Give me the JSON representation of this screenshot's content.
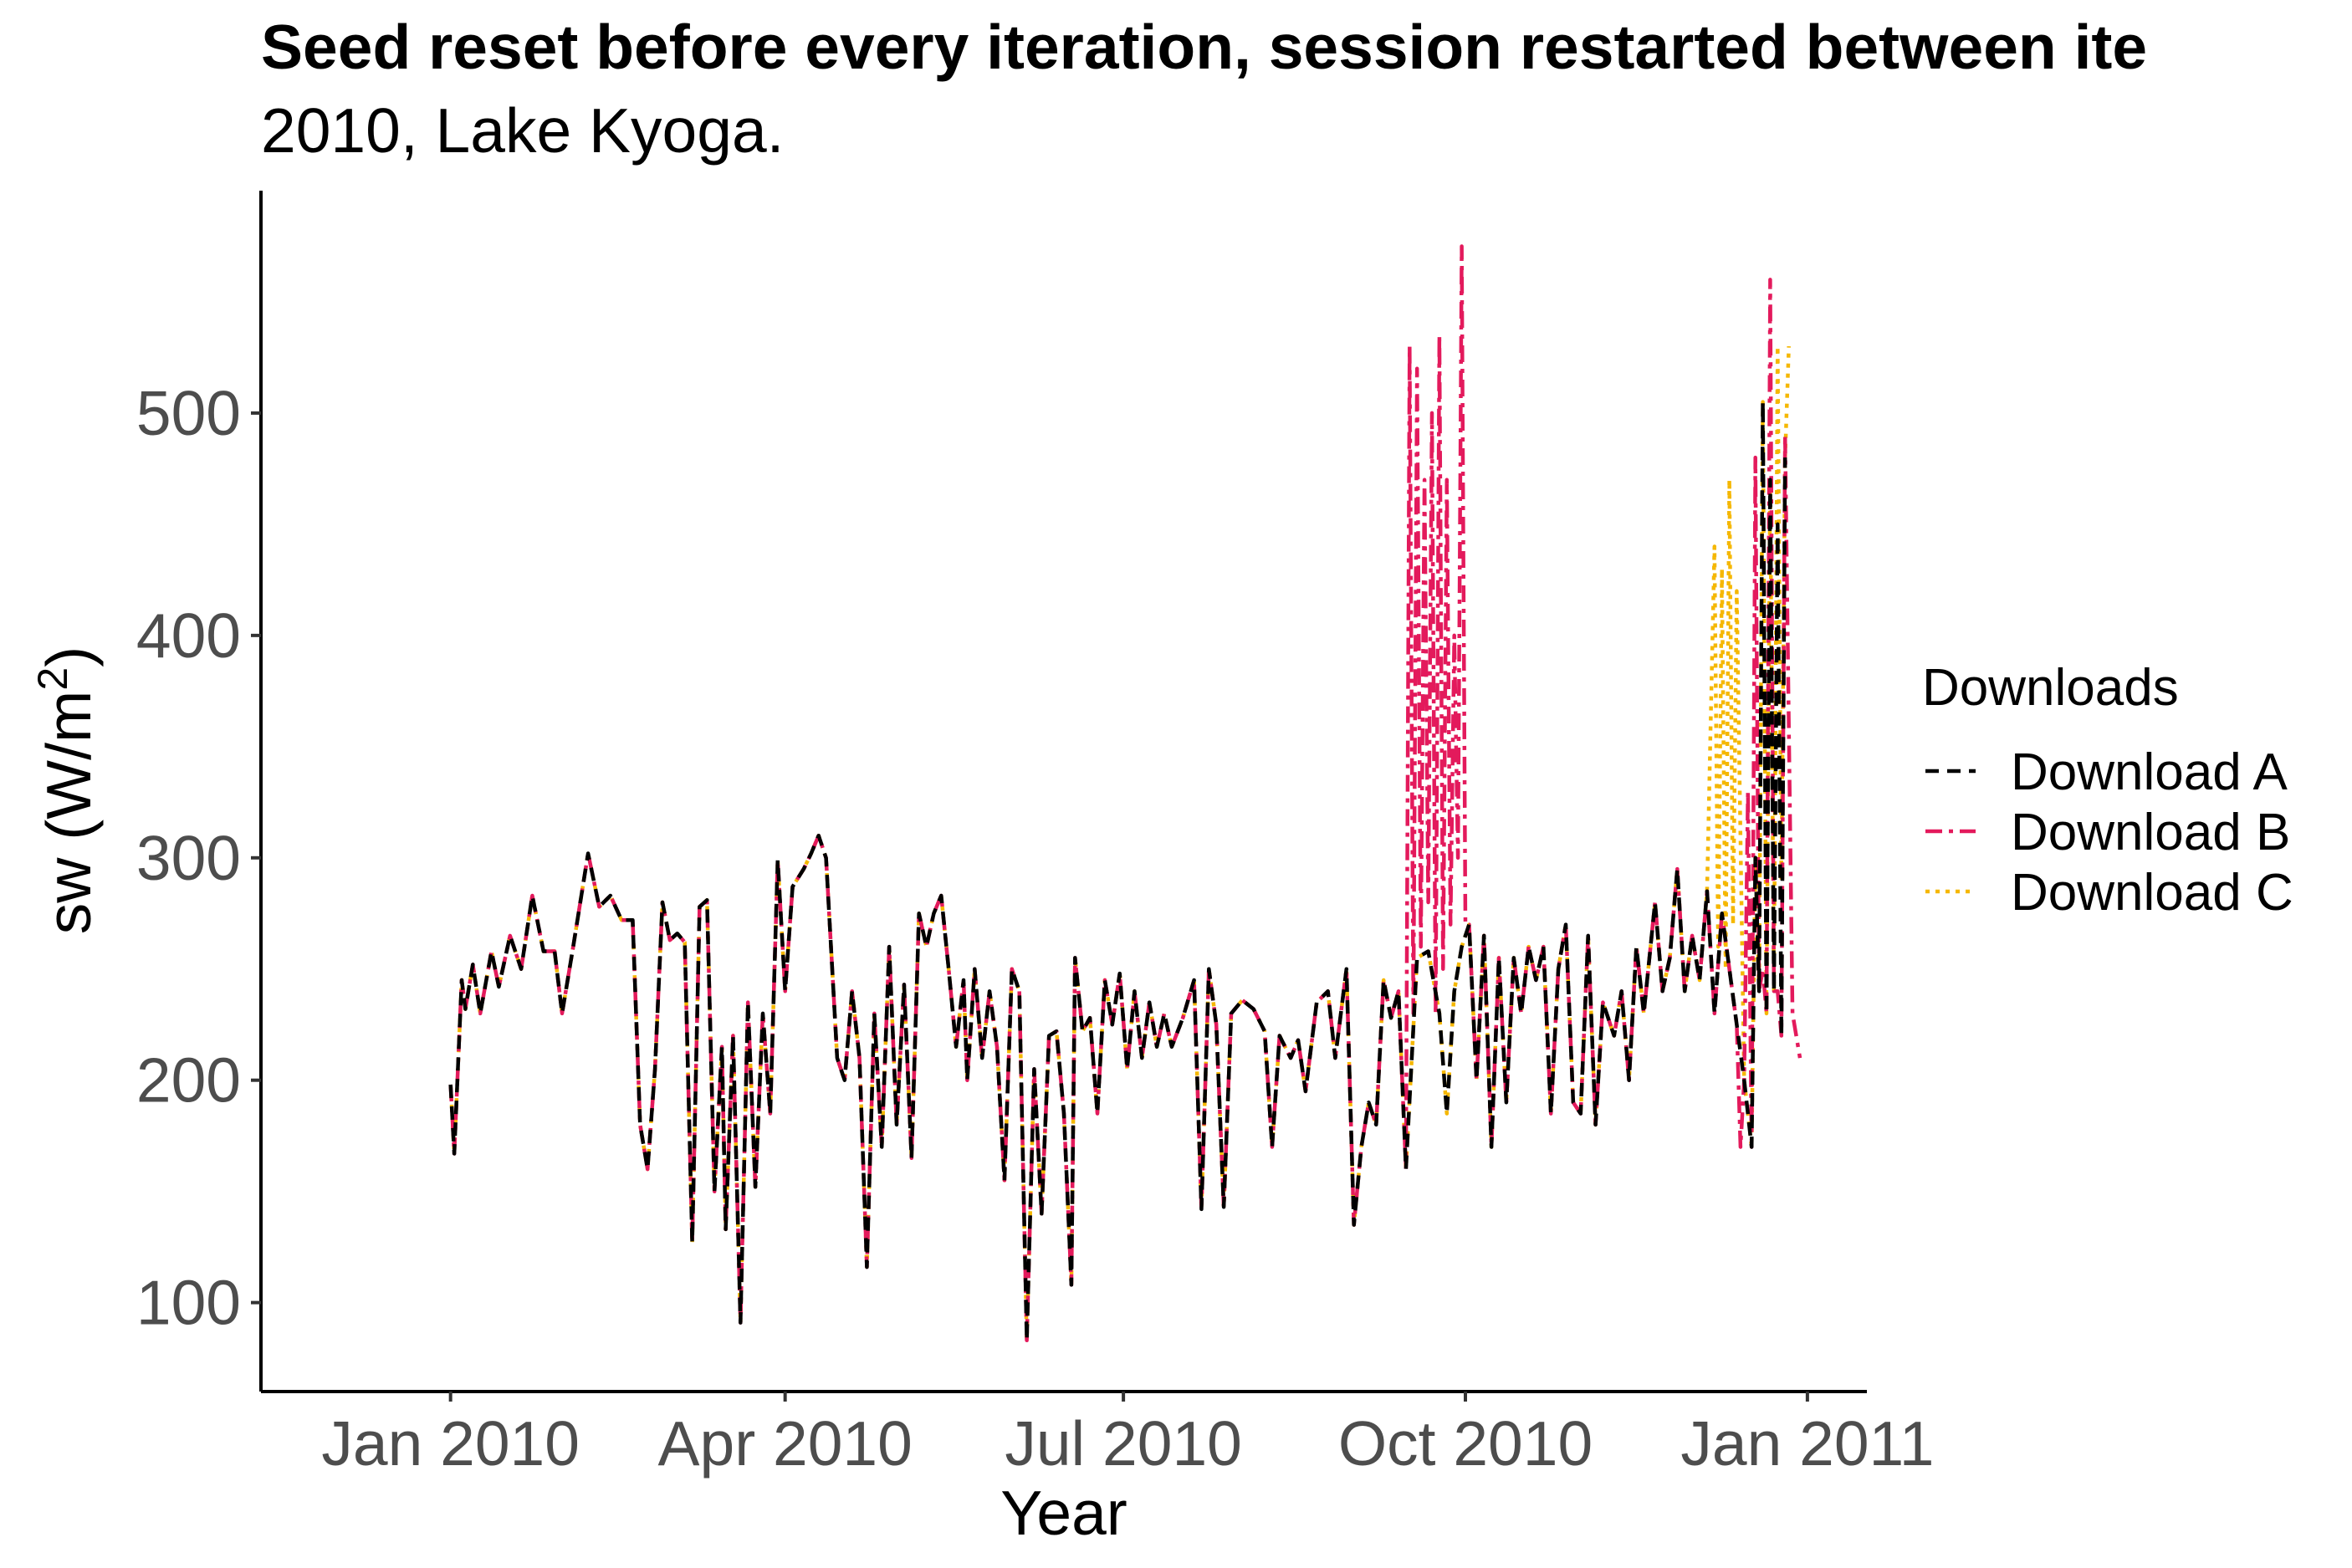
{
  "chart_data": {
    "type": "line",
    "title": "Seed reset before every iteration, session restarted between ite",
    "subtitle": "2010, Lake Kyoga.",
    "xlabel": "Year",
    "ylabel": "sw (W/m",
    "ylabel_superscript": "2",
    "ylabel_suffix": ")",
    "x_ticks": [
      "Jan 2010",
      "Apr 2010",
      "Jul 2010",
      "Oct 2010",
      "Jan 2011"
    ],
    "x_tick_dates": [
      "2010-01-01",
      "2010-04-01",
      "2010-07-01",
      "2010-10-01",
      "2011-01-01"
    ],
    "xlim": [
      "2009-11-11",
      "2011-01-17"
    ],
    "y_ticks": [
      100,
      200,
      300,
      400,
      500
    ],
    "ylim": [
      60,
      600
    ],
    "grid": false,
    "legend": {
      "title": "Downloads",
      "position": "right"
    },
    "series": [
      {
        "name": "Download A",
        "color": "#000000",
        "dash": "dashed",
        "points": [
          [
            "2010-01-01",
            198
          ],
          [
            "2010-01-02",
            167
          ],
          [
            "2010-01-04",
            245
          ],
          [
            "2010-01-05",
            232
          ],
          [
            "2010-01-07",
            252
          ],
          [
            "2010-01-09",
            230
          ],
          [
            "2010-01-12",
            258
          ],
          [
            "2010-01-14",
            242
          ],
          [
            "2010-01-17",
            265
          ],
          [
            "2010-01-20",
            250
          ],
          [
            "2010-01-23",
            283
          ],
          [
            "2010-01-26",
            258
          ],
          [
            "2010-01-29",
            258
          ],
          [
            "2010-01-31",
            230
          ],
          [
            "2010-02-03",
            260
          ],
          [
            "2010-02-07",
            302
          ],
          [
            "2010-02-10",
            278
          ],
          [
            "2010-02-13",
            283
          ],
          [
            "2010-02-16",
            272
          ],
          [
            "2010-02-19",
            272
          ],
          [
            "2010-02-21",
            180
          ],
          [
            "2010-02-23",
            160
          ],
          [
            "2010-02-25",
            205
          ],
          [
            "2010-02-27",
            280
          ],
          [
            "2010-03-01",
            263
          ],
          [
            "2010-03-03",
            266
          ],
          [
            "2010-03-05",
            262
          ],
          [
            "2010-03-07",
            127
          ],
          [
            "2010-03-09",
            278
          ],
          [
            "2010-03-11",
            281
          ],
          [
            "2010-03-13",
            150
          ],
          [
            "2010-03-15",
            215
          ],
          [
            "2010-03-16",
            133
          ],
          [
            "2010-03-18",
            220
          ],
          [
            "2010-03-20",
            91
          ],
          [
            "2010-03-22",
            235
          ],
          [
            "2010-03-24",
            152
          ],
          [
            "2010-03-26",
            230
          ],
          [
            "2010-03-28",
            185
          ],
          [
            "2010-03-30",
            299
          ],
          [
            "2010-04-01",
            240
          ],
          [
            "2010-04-03",
            287
          ],
          [
            "2010-04-06",
            295
          ],
          [
            "2010-04-08",
            302
          ],
          [
            "2010-04-10",
            310
          ],
          [
            "2010-04-12",
            300
          ],
          [
            "2010-04-15",
            210
          ],
          [
            "2010-04-17",
            200
          ],
          [
            "2010-04-19",
            240
          ],
          [
            "2010-04-21",
            210
          ],
          [
            "2010-04-23",
            116
          ],
          [
            "2010-04-25",
            230
          ],
          [
            "2010-04-27",
            170
          ],
          [
            "2010-04-29",
            260
          ],
          [
            "2010-05-01",
            180
          ],
          [
            "2010-05-03",
            243
          ],
          [
            "2010-05-05",
            165
          ],
          [
            "2010-05-07",
            275
          ],
          [
            "2010-05-09",
            260
          ],
          [
            "2010-05-11",
            275
          ],
          [
            "2010-05-13",
            283
          ],
          [
            "2010-05-15",
            250
          ],
          [
            "2010-05-17",
            215
          ],
          [
            "2010-05-19",
            245
          ],
          [
            "2010-05-20",
            200
          ],
          [
            "2010-05-22",
            250
          ],
          [
            "2010-05-24",
            210
          ],
          [
            "2010-05-26",
            240
          ],
          [
            "2010-05-28",
            215
          ],
          [
            "2010-05-30",
            155
          ],
          [
            "2010-06-01",
            250
          ],
          [
            "2010-06-03",
            240
          ],
          [
            "2010-06-05",
            83
          ],
          [
            "2010-06-07",
            205
          ],
          [
            "2010-06-09",
            140
          ],
          [
            "2010-06-11",
            220
          ],
          [
            "2010-06-13",
            222
          ],
          [
            "2010-06-15",
            185
          ],
          [
            "2010-06-17",
            108
          ],
          [
            "2010-06-18",
            255
          ],
          [
            "2010-06-20",
            222
          ],
          [
            "2010-06-22",
            228
          ],
          [
            "2010-06-24",
            185
          ],
          [
            "2010-06-26",
            245
          ],
          [
            "2010-06-28",
            225
          ],
          [
            "2010-06-30",
            248
          ],
          [
            "2010-07-02",
            205
          ],
          [
            "2010-07-04",
            240
          ],
          [
            "2010-07-06",
            210
          ],
          [
            "2010-07-08",
            235
          ],
          [
            "2010-07-10",
            215
          ],
          [
            "2010-07-12",
            230
          ],
          [
            "2010-07-14",
            215
          ],
          [
            "2010-07-17",
            228
          ],
          [
            "2010-07-20",
            245
          ],
          [
            "2010-07-22",
            142
          ],
          [
            "2010-07-24",
            250
          ],
          [
            "2010-07-26",
            225
          ],
          [
            "2010-07-28",
            143
          ],
          [
            "2010-07-30",
            230
          ],
          [
            "2010-08-02",
            236
          ],
          [
            "2010-08-05",
            232
          ],
          [
            "2010-08-08",
            222
          ],
          [
            "2010-08-10",
            170
          ],
          [
            "2010-08-12",
            220
          ],
          [
            "2010-08-15",
            210
          ],
          [
            "2010-08-17",
            218
          ],
          [
            "2010-08-19",
            195
          ],
          [
            "2010-08-22",
            235
          ],
          [
            "2010-08-25",
            240
          ],
          [
            "2010-08-27",
            210
          ],
          [
            "2010-08-30",
            250
          ],
          [
            "2010-09-01",
            135
          ],
          [
            "2010-09-03",
            170
          ],
          [
            "2010-09-05",
            190
          ],
          [
            "2010-09-07",
            180
          ],
          [
            "2010-09-09",
            245
          ],
          [
            "2010-09-11",
            228
          ],
          [
            "2010-09-13",
            240
          ],
          [
            "2010-09-15",
            160
          ],
          [
            "2010-09-18",
            255
          ],
          [
            "2010-09-21",
            258
          ],
          [
            "2010-09-24",
            230
          ],
          [
            "2010-09-26",
            185
          ],
          [
            "2010-09-28",
            240
          ],
          [
            "2010-09-30",
            260
          ],
          [
            "2010-10-02",
            270
          ],
          [
            "2010-10-04",
            200
          ],
          [
            "2010-10-06",
            265
          ],
          [
            "2010-10-08",
            170
          ],
          [
            "2010-10-10",
            255
          ],
          [
            "2010-10-12",
            190
          ],
          [
            "2010-10-14",
            255
          ],
          [
            "2010-10-16",
            230
          ],
          [
            "2010-10-18",
            260
          ],
          [
            "2010-10-20",
            245
          ],
          [
            "2010-10-22",
            260
          ],
          [
            "2010-10-24",
            185
          ],
          [
            "2010-10-26",
            250
          ],
          [
            "2010-10-28",
            270
          ],
          [
            "2010-10-30",
            190
          ],
          [
            "2010-11-01",
            185
          ],
          [
            "2010-11-03",
            265
          ],
          [
            "2010-11-05",
            180
          ],
          [
            "2010-11-07",
            235
          ],
          [
            "2010-11-09",
            225
          ],
          [
            "2010-11-10",
            220
          ],
          [
            "2010-11-12",
            240
          ],
          [
            "2010-11-14",
            200
          ],
          [
            "2010-11-16",
            260
          ],
          [
            "2010-11-18",
            230
          ],
          [
            "2010-11-21",
            280
          ],
          [
            "2010-11-23",
            240
          ],
          [
            "2010-11-25",
            255
          ],
          [
            "2010-11-27",
            295
          ],
          [
            "2010-11-29",
            240
          ],
          [
            "2010-12-01",
            265
          ],
          [
            "2010-12-03",
            245
          ],
          [
            "2010-12-05",
            285
          ],
          [
            "2010-12-07",
            230
          ],
          [
            "2010-12-09",
            275
          ],
          [
            "2010-12-11",
            250
          ],
          [
            "2010-12-13",
            225
          ],
          [
            "2010-12-15",
            200
          ],
          [
            "2010-12-17",
            170
          ],
          [
            "2010-12-18",
            300
          ],
          [
            "2010-12-19",
            240
          ],
          [
            "2010-12-20",
            505
          ],
          [
            "2010-12-21",
            230
          ],
          [
            "2010-12-22",
            470
          ],
          [
            "2010-12-23",
            240
          ],
          [
            "2010-12-24",
            450
          ],
          [
            "2010-12-25",
            220
          ],
          [
            "2010-12-26",
            480
          ]
        ]
      },
      {
        "name": "Download B",
        "color": "#e31a5c",
        "dash": "dashdot",
        "points": []
      },
      {
        "name": "Download C",
        "color": "#f5b700",
        "dash": "dotted",
        "points": []
      }
    ]
  }
}
